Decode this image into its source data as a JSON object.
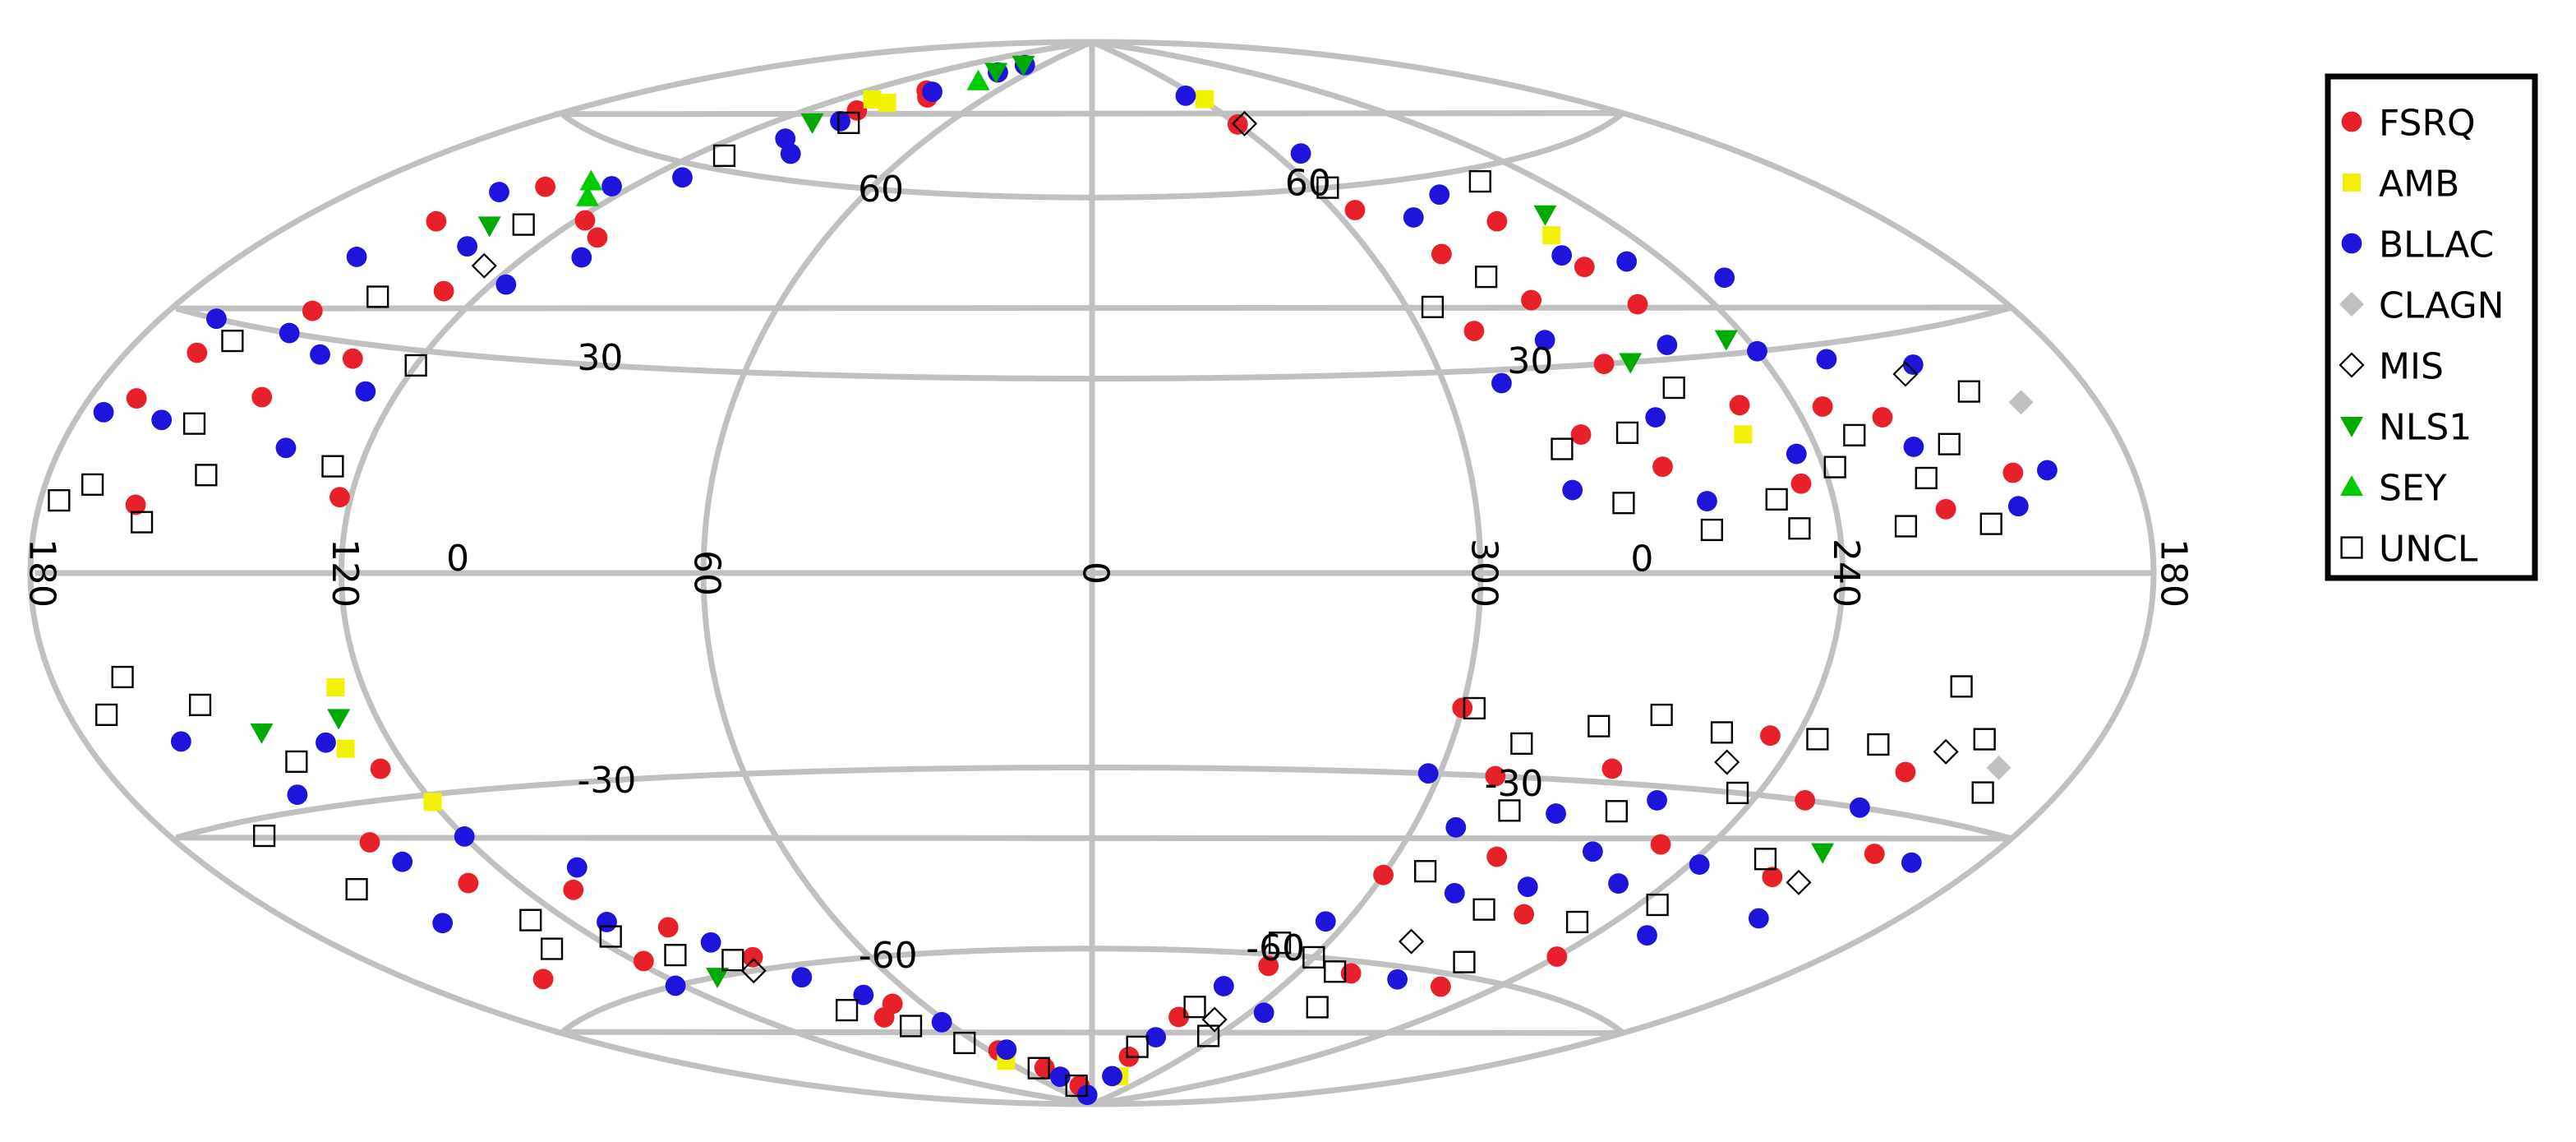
{
  "chart_data": {
    "type": "scatter",
    "projection": "aitoff-hammer",
    "title": "",
    "xlabel": "",
    "ylabel": "",
    "grid": true,
    "legend_position": "right",
    "longitude_grid": [
      0,
      60,
      120,
      180,
      240,
      300
    ],
    "latitude_grid": [
      -60,
      -30,
      0,
      30,
      60
    ],
    "tick_labels": {
      "lon": [
        {
          "text": "180",
          "lon": 180,
          "side": "left"
        },
        {
          "text": "120",
          "lon": 120
        },
        {
          "text": "60",
          "lon": 60
        },
        {
          "text": "0",
          "lon": 0
        },
        {
          "text": "300",
          "lon": 300
        },
        {
          "text": "240",
          "lon": 240
        },
        {
          "text": "180",
          "lon": 180,
          "side": "right"
        }
      ],
      "lat": [
        {
          "text": "60",
          "lon": 57,
          "lat": 60
        },
        {
          "text": "30",
          "lon": 87,
          "lat": 31
        },
        {
          "text": "0",
          "lon": 100,
          "lat": 2
        },
        {
          "text": "-30",
          "lon": 85,
          "lat": -30
        },
        {
          "text": "-60",
          "lon": 55,
          "lat": -60
        },
        {
          "text": "60",
          "lon": 300,
          "lat": 61
        },
        {
          "text": "30",
          "lon": 283,
          "lat": 31
        },
        {
          "text": "0",
          "lon": 274,
          "lat": 2
        },
        {
          "text": "-30",
          "lon": 286,
          "lat": -31
        },
        {
          "text": "-60",
          "lon": 312,
          "lat": -59
        }
      ]
    },
    "series": [
      {
        "name": "FSRQ",
        "marker": "circle",
        "color": "#e8202a",
        "points": [
          [
            150,
            46
          ],
          [
            140,
            53
          ],
          [
            118,
            50
          ],
          [
            96,
            77
          ],
          [
            165,
            26
          ],
          [
            150,
            33
          ],
          [
            170,
            20
          ],
          [
            145,
            22
          ],
          [
            128,
            38
          ],
          [
            110,
            48
          ],
          [
            133,
            28
          ],
          [
            160,
            8
          ],
          [
            122,
            10
          ],
          [
            103,
            72
          ],
          [
            88,
            76
          ],
          [
            300,
            72
          ],
          [
            295,
            56
          ],
          [
            285,
            48
          ],
          [
            275,
            40
          ],
          [
            265,
            52
          ],
          [
            255,
            38
          ],
          [
            250,
            23
          ],
          [
            280,
            20
          ],
          [
            268,
            15
          ],
          [
            235,
            22
          ],
          [
            245,
            12
          ],
          [
            225,
            20
          ],
          [
            220,
            8
          ],
          [
            205,
            12
          ],
          [
            270,
            30
          ],
          [
            258,
            44
          ],
          [
            290,
            36
          ],
          [
            300,
            -20
          ],
          [
            290,
            -30
          ],
          [
            280,
            -42
          ],
          [
            270,
            -28
          ],
          [
            262,
            -50
          ],
          [
            250,
            -38
          ],
          [
            240,
            -55
          ],
          [
            230,
            -30
          ],
          [
            220,
            -40
          ],
          [
            215,
            -25
          ],
          [
            205,
            -35
          ],
          [
            300,
            -46
          ],
          [
            310,
            -62
          ],
          [
            325,
            -72
          ],
          [
            335,
            -80
          ],
          [
            285,
            -62
          ],
          [
            255,
            -62
          ],
          [
            245,
            -22
          ],
          [
            140,
            -35
          ],
          [
            130,
            -42
          ],
          [
            125,
            -26
          ],
          [
            110,
            -45
          ],
          [
            100,
            -52
          ],
          [
            90,
            -58
          ],
          [
            70,
            -68
          ],
          [
            55,
            -78
          ],
          [
            40,
            -82
          ],
          [
            150,
            -55
          ],
          [
            118,
            -56
          ],
          [
            80,
            -70
          ],
          [
            20,
            -86
          ]
        ]
      },
      {
        "name": "AMB",
        "marker": "square",
        "color": "#f2f200",
        "points": [
          [
            108,
            74
          ],
          [
            99,
            74
          ],
          [
            298,
            77
          ],
          [
            257,
            49
          ],
          [
            252,
            19
          ],
          [
            125,
            -15
          ],
          [
            120,
            -31
          ],
          [
            129,
            -23
          ],
          [
            330,
            -84
          ],
          [
            60,
            -80
          ]
        ]
      },
      {
        "name": "BLLAC",
        "marker": "circle",
        "color": "#1e14dc",
        "points": [
          [
            155,
            40
          ],
          [
            148,
            51
          ],
          [
            135,
            44
          ],
          [
            125,
            55
          ],
          [
            112,
            58
          ],
          [
            105,
            66
          ],
          [
            100,
            70
          ],
          [
            92,
            77
          ],
          [
            84,
            82
          ],
          [
            168,
            30
          ],
          [
            162,
            18
          ],
          [
            150,
            30
          ],
          [
            140,
            28
          ],
          [
            135,
            16
          ],
          [
            126,
            24
          ],
          [
            117,
            40
          ],
          [
            108,
            45
          ],
          [
            95,
            64
          ],
          [
            78,
            84
          ],
          [
            175,
            18
          ],
          [
            305,
            78
          ],
          [
            292,
            66
          ],
          [
            283,
            54
          ],
          [
            270,
            57
          ],
          [
            260,
            46
          ],
          [
            248,
            44
          ],
          [
            240,
            30
          ],
          [
            232,
            40
          ],
          [
            228,
            28
          ],
          [
            222,
            16
          ],
          [
            212,
            26
          ],
          [
            206,
            8
          ],
          [
            198,
            12
          ],
          [
            290,
            28
          ],
          [
            278,
            34
          ],
          [
            266,
            22
          ],
          [
            256,
            32
          ],
          [
            244,
            16
          ],
          [
            262,
            10
          ],
          [
            284,
            12
          ],
          [
            302,
            -30
          ],
          [
            292,
            -38
          ],
          [
            282,
            -48
          ],
          [
            275,
            -35
          ],
          [
            268,
            -46
          ],
          [
            258,
            -32
          ],
          [
            250,
            -44
          ],
          [
            238,
            -40
          ],
          [
            228,
            -50
          ],
          [
            218,
            -30
          ],
          [
            210,
            -45
          ],
          [
            195,
            -35
          ],
          [
            305,
            -54
          ],
          [
            318,
            -66
          ],
          [
            328,
            -76
          ],
          [
            338,
            -84
          ],
          [
            295,
            -70
          ],
          [
            270,
            -62
          ],
          [
            262,
            -40
          ],
          [
            145,
            -28
          ],
          [
            138,
            -38
          ],
          [
            132,
            -22
          ],
          [
            120,
            -36
          ],
          [
            112,
            -50
          ],
          [
            104,
            -42
          ],
          [
            95,
            -55
          ],
          [
            85,
            -62
          ],
          [
            75,
            -66
          ],
          [
            62,
            -72
          ],
          [
            50,
            -78
          ],
          [
            35,
            -84
          ],
          [
            15,
            -88
          ],
          [
            160,
            -20
          ],
          [
            148,
            -46
          ],
          [
            122,
            -60
          ]
        ]
      },
      {
        "name": "CLAGN",
        "marker": "diamond",
        "color": "#c0c0c0",
        "points": [
          [
            196,
            20
          ],
          [
            197,
            -23
          ]
        ]
      },
      {
        "name": "MIS",
        "marker": "diamond-open",
        "color": "#000000",
        "points": [
          [
            126,
            42
          ],
          [
            215,
            25
          ],
          [
            210,
            -22
          ],
          [
            250,
            -26
          ],
          [
            280,
            -56
          ],
          [
            213,
            -40
          ],
          [
            310,
            -72
          ],
          [
            95,
            -60
          ],
          [
            297,
            72
          ]
        ]
      },
      {
        "name": "NLS1",
        "marker": "triangle-down",
        "color": "#00aa00",
        "points": [
          [
            137,
            47
          ],
          [
            86,
            82
          ],
          [
            80,
            84
          ],
          [
            108,
            69
          ],
          [
            252,
            52
          ],
          [
            244,
            32
          ],
          [
            265,
            30
          ],
          [
            143,
            -20
          ],
          [
            127,
            -19
          ],
          [
            107,
            -60
          ],
          [
            216,
            -36
          ]
        ]
      },
      {
        "name": "SEY",
        "marker": "triangle-up",
        "color": "#00cc00",
        "points": [
          [
            132,
            55
          ],
          [
            126,
            53
          ],
          [
            82,
            80
          ]
        ]
      },
      {
        "name": "UNCL",
        "marker": "square-open",
        "color": "#000000",
        "points": [
          [
            170,
            10
          ],
          [
            160,
            28
          ],
          [
            155,
            18
          ],
          [
            148,
            12
          ],
          [
            140,
            36
          ],
          [
            125,
            14
          ],
          [
            120,
            28
          ],
          [
            96,
            70
          ],
          [
            176,
            8
          ],
          [
            158,
            6
          ],
          [
            130,
            48
          ],
          [
            112,
            62
          ],
          [
            296,
            60
          ],
          [
            280,
            44
          ],
          [
            272,
            20
          ],
          [
            262,
            6
          ],
          [
            250,
            10
          ],
          [
            238,
            14
          ],
          [
            228,
            6
          ],
          [
            215,
            16
          ],
          [
            205,
            22
          ],
          [
            284,
            18
          ],
          [
            276,
            10
          ],
          [
            260,
            26
          ],
          [
            247,
            6
          ],
          [
            232,
            18
          ],
          [
            222,
            12
          ],
          [
            212,
            6
          ],
          [
            295,
            40
          ],
          [
            255,
            58
          ],
          [
            298,
            -20
          ],
          [
            288,
            -25
          ],
          [
            276,
            -22
          ],
          [
            266,
            -20
          ],
          [
            254,
            -22
          ],
          [
            244,
            -30
          ],
          [
            236,
            -22
          ],
          [
            224,
            -22
          ],
          [
            214,
            -14
          ],
          [
            204,
            -20
          ],
          [
            196,
            -26
          ],
          [
            292,
            -45
          ],
          [
            284,
            -35
          ],
          [
            272,
            -50
          ],
          [
            260,
            -58
          ],
          [
            248,
            -50
          ],
          [
            236,
            -46
          ],
          [
            226,
            -38
          ],
          [
            290,
            -62
          ],
          [
            300,
            -60
          ],
          [
            312,
            -58
          ],
          [
            322,
            -70
          ],
          [
            334,
            -78
          ],
          [
            304,
            -75
          ],
          [
            280,
            -68
          ],
          [
            264,
            -34
          ],
          [
            172,
            -16
          ],
          [
            165,
            -12
          ],
          [
            160,
            -32
          ],
          [
            152,
            -16
          ],
          [
            140,
            -24
          ],
          [
            128,
            -48
          ],
          [
            116,
            -52
          ],
          [
            108,
            -56
          ],
          [
            96,
            -58
          ],
          [
            88,
            -68
          ],
          [
            76,
            -72
          ],
          [
            66,
            -76
          ],
          [
            45,
            -82
          ],
          [
            25,
            -86
          ],
          [
            155,
            -40
          ],
          [
            134,
            -52
          ]
        ]
      }
    ]
  },
  "legend": {
    "entries": [
      {
        "label": "FSRQ",
        "marker": "circle",
        "color": "#e8202a"
      },
      {
        "label": "AMB",
        "marker": "square",
        "color": "#f2f200"
      },
      {
        "label": "BLLAC",
        "marker": "circle",
        "color": "#1e14dc"
      },
      {
        "label": "CLAGN",
        "marker": "diamond",
        "color": "#c0c0c0"
      },
      {
        "label": "MIS",
        "marker": "diamond-open",
        "color": "#000000"
      },
      {
        "label": "NLS1",
        "marker": "triangle-down",
        "color": "#00aa00"
      },
      {
        "label": "SEY",
        "marker": "triangle-up",
        "color": "#00cc00"
      },
      {
        "label": "UNCL",
        "marker": "square-open",
        "color": "#000000"
      }
    ]
  }
}
